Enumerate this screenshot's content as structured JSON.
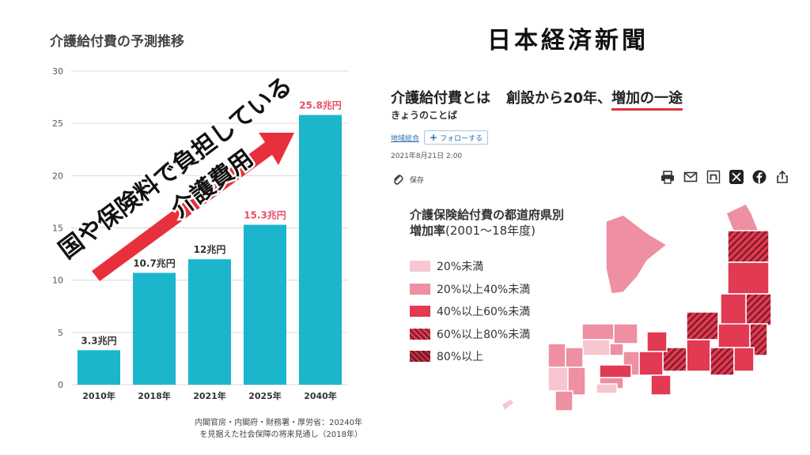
{
  "chart": {
    "source_line1": "内閣官房・内閣府・財務署・厚労省：20240年",
    "source_line2": "を見据えた社会保障の将来見通し（2018年）",
    "overlay_line1": "国や保険料で負担している",
    "overlay_line2": "介護費用"
  },
  "chart_data": {
    "type": "bar",
    "title": "介護給付費の予測推移",
    "categories": [
      "2010年",
      "2018年",
      "2021年",
      "2025年",
      "2040年"
    ],
    "values": [
      3.3,
      10.7,
      12,
      15.3,
      25.8
    ],
    "data_labels": [
      "3.3兆円",
      "10.7兆円",
      "12兆円",
      "15.3兆円",
      "25.8兆円"
    ],
    "highlight": [
      false,
      false,
      false,
      true,
      true
    ],
    "yticks": [
      0,
      5,
      10,
      15,
      20,
      25,
      30
    ],
    "ylim": [
      0,
      30
    ],
    "xlabel": "",
    "ylabel": "",
    "grid": true,
    "colors": {
      "bar": "#1bb5cc",
      "highlight_label": "#e8506a",
      "arrow": "#e8303c"
    }
  },
  "article": {
    "logo": "日本経済新聞",
    "headline_part1": "介護給付費とは",
    "headline_part2": "創設から20年、",
    "headline_part3": "増加の一途",
    "subheading": "きょうのことば",
    "tag": "地域総合",
    "follow_label": "フォローする",
    "date": "2021年8月21日 2:00",
    "save_label": "保存",
    "share_icons": [
      "print-icon",
      "mail-icon",
      "note-icon",
      "x-icon",
      "facebook-icon",
      "share-icon"
    ]
  },
  "map": {
    "title_line1": "介護保険給付費の都道府県別",
    "title_line2_bold": "増加率",
    "title_line2_normal": "(2001～18年度)",
    "legend": [
      {
        "label": "20%未満",
        "color": "#f7c6d0"
      },
      {
        "label": "20%以上40%未満",
        "color": "#ee8fa2"
      },
      {
        "label": "40%以上60%未満",
        "color": "#e13a52"
      },
      {
        "label": "60%以上80%未満",
        "color": "#e13a52"
      },
      {
        "label": "80%以上",
        "color": "#7a1a26"
      }
    ]
  }
}
